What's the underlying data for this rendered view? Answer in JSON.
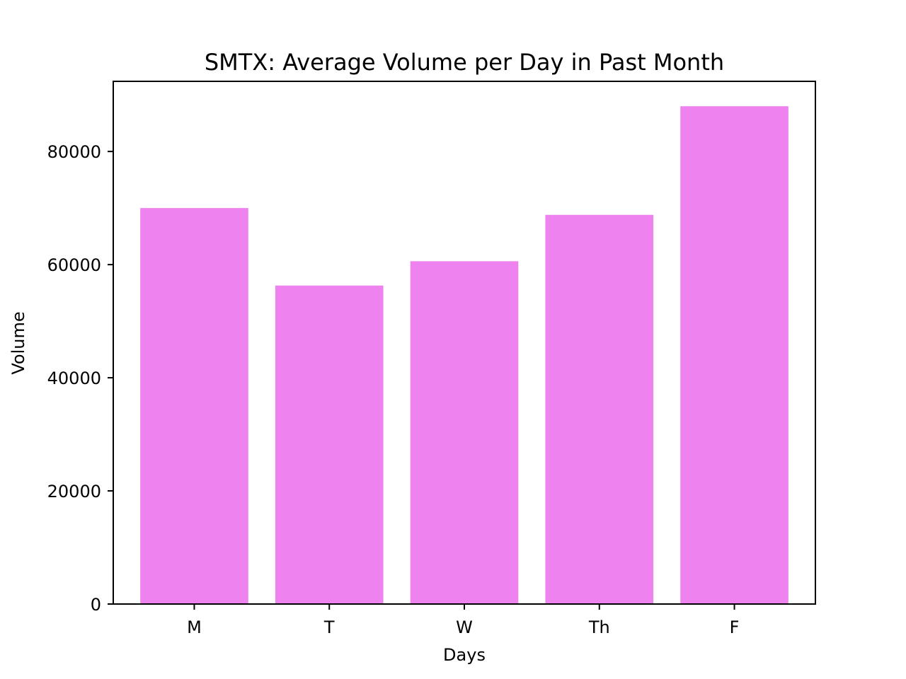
{
  "chart_data": {
    "type": "bar",
    "title": "SMTX: Average Volume per Day in Past Month",
    "xlabel": "Days",
    "ylabel": "Volume",
    "categories": [
      "M",
      "T",
      "W",
      "Th",
      "F"
    ],
    "values": [
      70000,
      56300,
      60600,
      68800,
      88000
    ],
    "ylim": [
      0,
      92400
    ],
    "yticks": [
      0,
      20000,
      40000,
      60000,
      80000
    ],
    "ytick_labels": [
      "0",
      "20000",
      "40000",
      "60000",
      "80000"
    ],
    "grid": false,
    "bar_color": "#ee82ee"
  }
}
